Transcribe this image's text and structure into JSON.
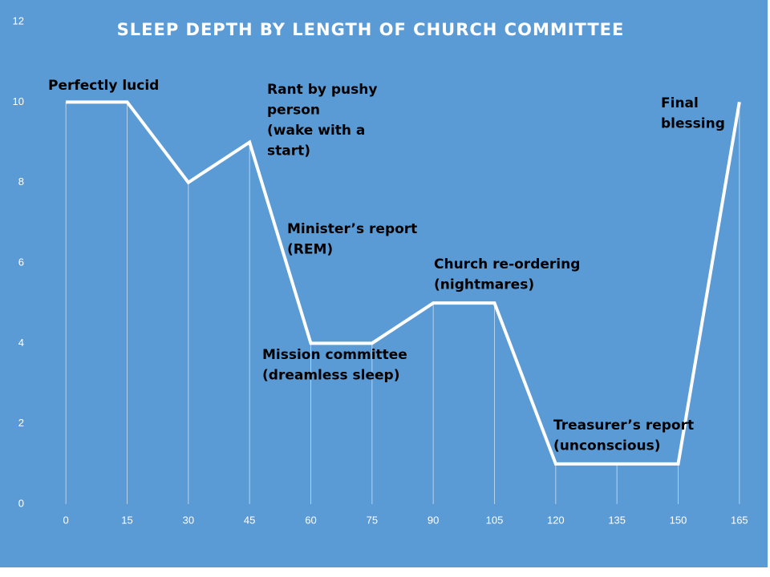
{
  "chart_data": {
    "type": "line",
    "title": "SLEEP DEPTH BY LENGTH OF CHURCH COMMITTEE",
    "categories": [
      "0",
      "15",
      "30",
      "45",
      "60",
      "75",
      "90",
      "105",
      "120",
      "135",
      "150",
      "165"
    ],
    "series": [
      {
        "color": "#ffffff",
        "values": [
          10,
          10,
          8,
          9,
          4,
          4,
          5,
          5,
          1,
          1,
          1,
          10
        ]
      }
    ],
    "ylim": [
      0,
      12
    ],
    "yticks": [
      0,
      2,
      4,
      6,
      8,
      10,
      12
    ],
    "background": "#5b9bd5",
    "drop_lines": true,
    "annotations": [
      {
        "text": [
          "Perfectly lucid"
        ]
      },
      {
        "text": [
          "Rant by pushy",
          "person",
          "(wake with a",
          "start)"
        ]
      },
      {
        "text": [
          "Final",
          "blessing"
        ]
      },
      {
        "text": [
          "Minister’s report",
          "(REM)"
        ]
      },
      {
        "text": [
          "Church re-ordering",
          "(nightmares)"
        ]
      },
      {
        "text": [
          "Mission committee",
          "(dreamless sleep)"
        ]
      },
      {
        "text": [
          "Treasurer’s report",
          "(unconscious)"
        ]
      }
    ]
  }
}
